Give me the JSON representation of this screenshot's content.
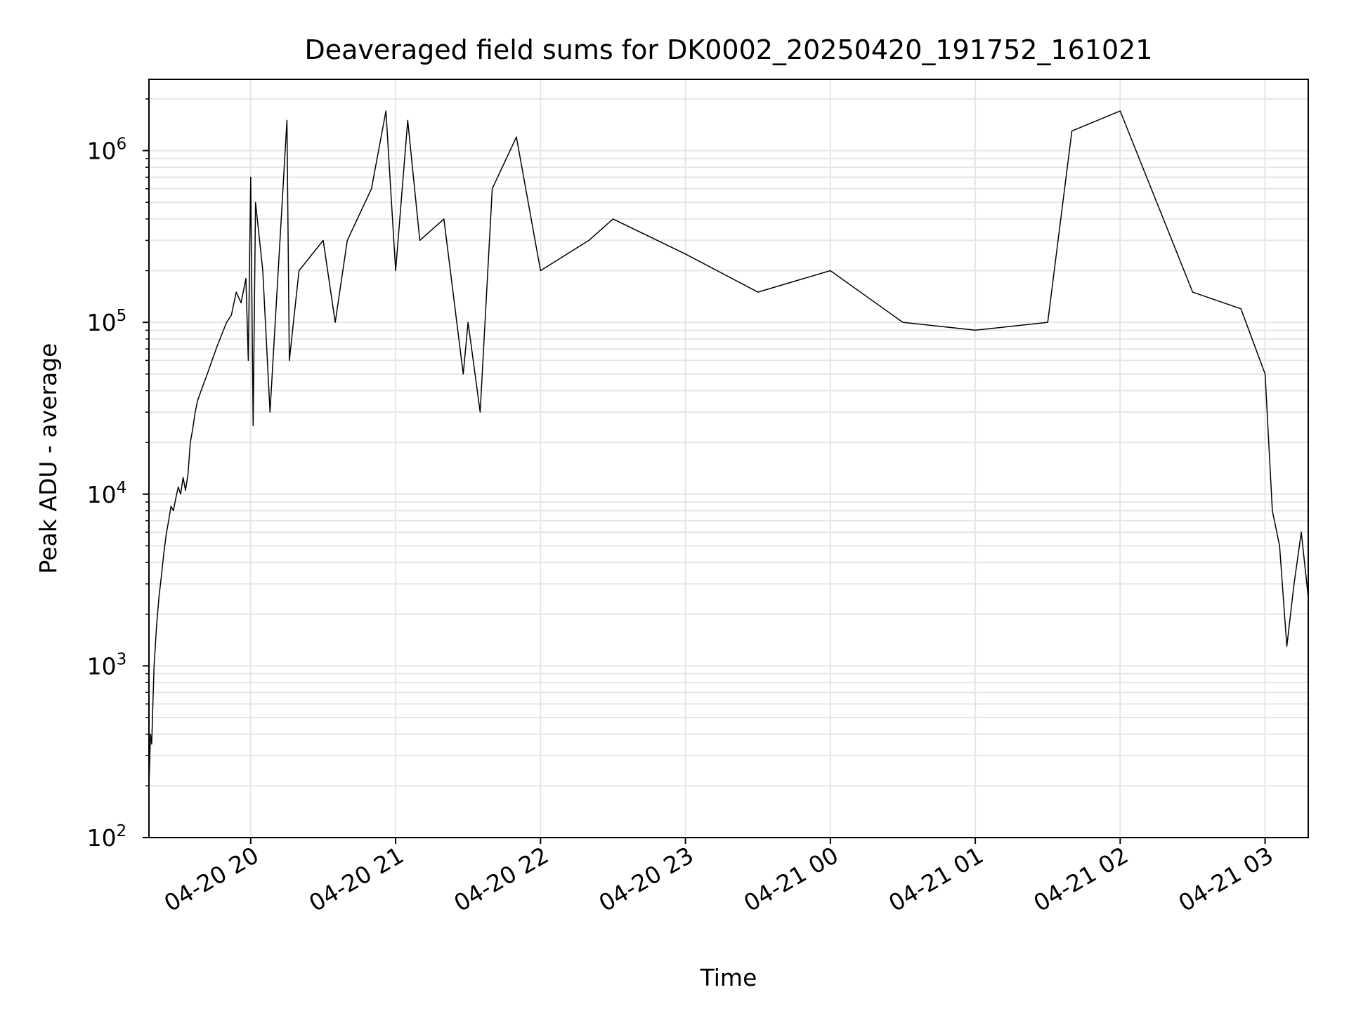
{
  "chart_data": {
    "type": "line",
    "title": "Deaveraged field sums for DK0002_20250420_191752_161021",
    "xlabel": "Time",
    "ylabel": "Peak ADU - average",
    "x_range": [
      "2025-04-20T19:17:52",
      "2025-04-21T03:17:52"
    ],
    "yscale": "log",
    "ylim": [
      100,
      2600000
    ],
    "grid": true,
    "x_ticks": [
      {
        "time": "2025-04-20T20:00",
        "label": "04-20 20"
      },
      {
        "time": "2025-04-20T21:00",
        "label": "04-20 21"
      },
      {
        "time": "2025-04-20T22:00",
        "label": "04-20 22"
      },
      {
        "time": "2025-04-20T23:00",
        "label": "04-20 23"
      },
      {
        "time": "2025-04-21T00:00",
        "label": "04-21 00"
      },
      {
        "time": "2025-04-21T01:00",
        "label": "04-21 01"
      },
      {
        "time": "2025-04-21T02:00",
        "label": "04-21 02"
      },
      {
        "time": "2025-04-21T03:00",
        "label": "04-21 03"
      }
    ],
    "y_ticks": [
      {
        "value": 100,
        "base": "10",
        "exp": "2"
      },
      {
        "value": 1000,
        "base": "10",
        "exp": "3"
      },
      {
        "value": 10000,
        "base": "10",
        "exp": "4"
      },
      {
        "value": 100000,
        "base": "10",
        "exp": "5"
      },
      {
        "value": 1000000,
        "base": "10",
        "exp": "6"
      }
    ],
    "series": [
      {
        "color": "#000000",
        "points": [
          [
            "2025-04-20T19:17:52",
            200
          ],
          [
            "2025-04-20T19:18:30",
            400
          ],
          [
            "2025-04-20T19:19:00",
            350
          ],
          [
            "2025-04-20T19:19:30",
            600
          ],
          [
            "2025-04-20T19:20:00",
            1000
          ],
          [
            "2025-04-20T19:21:00",
            1700
          ],
          [
            "2025-04-20T19:22:00",
            2500
          ],
          [
            "2025-04-20T19:23:00",
            3300
          ],
          [
            "2025-04-20T19:24:00",
            4500
          ],
          [
            "2025-04-20T19:25:00",
            5800
          ],
          [
            "2025-04-20T19:26:00",
            7000
          ],
          [
            "2025-04-20T19:27:00",
            8500
          ],
          [
            "2025-04-20T19:28:00",
            8000
          ],
          [
            "2025-04-20T19:29:00",
            9500
          ],
          [
            "2025-04-20T19:30:00",
            11000
          ],
          [
            "2025-04-20T19:31:00",
            10000
          ],
          [
            "2025-04-20T19:32:00",
            12500
          ],
          [
            "2025-04-20T19:33:00",
            10500
          ],
          [
            "2025-04-20T19:34:00",
            13000
          ],
          [
            "2025-04-20T19:35:00",
            20000
          ],
          [
            "2025-04-20T19:36:00",
            24000
          ],
          [
            "2025-04-20T19:37:00",
            30000
          ],
          [
            "2025-04-20T19:38:00",
            35000
          ],
          [
            "2025-04-20T19:40:00",
            42000
          ],
          [
            "2025-04-20T19:42:00",
            50000
          ],
          [
            "2025-04-20T19:44:00",
            60000
          ],
          [
            "2025-04-20T19:46:00",
            72000
          ],
          [
            "2025-04-20T19:48:00",
            85000
          ],
          [
            "2025-04-20T19:50:00",
            100000
          ],
          [
            "2025-04-20T19:52:00",
            110000
          ],
          [
            "2025-04-20T19:54:00",
            150000
          ],
          [
            "2025-04-20T19:56:00",
            130000
          ],
          [
            "2025-04-20T19:58:00",
            180000
          ],
          [
            "2025-04-20T19:59:00",
            60000
          ],
          [
            "2025-04-20T20:00:00",
            700000
          ],
          [
            "2025-04-20T20:01:00",
            25000
          ],
          [
            "2025-04-20T20:02:00",
            500000
          ],
          [
            "2025-04-20T20:05:00",
            200000
          ],
          [
            "2025-04-20T20:08:00",
            30000
          ],
          [
            "2025-04-20T20:15:00",
            1500000
          ],
          [
            "2025-04-20T20:16:00",
            60000
          ],
          [
            "2025-04-20T20:20:00",
            200000
          ],
          [
            "2025-04-20T20:30:00",
            300000
          ],
          [
            "2025-04-20T20:35:00",
            100000
          ],
          [
            "2025-04-20T20:40:00",
            300000
          ],
          [
            "2025-04-20T20:50:00",
            600000
          ],
          [
            "2025-04-20T20:56:00",
            1700000
          ],
          [
            "2025-04-20T21:00:00",
            200000
          ],
          [
            "2025-04-20T21:05:00",
            1500000
          ],
          [
            "2025-04-20T21:10:00",
            300000
          ],
          [
            "2025-04-20T21:20:00",
            400000
          ],
          [
            "2025-04-20T21:28:00",
            50000
          ],
          [
            "2025-04-20T21:30:00",
            100000
          ],
          [
            "2025-04-20T21:35:00",
            30000
          ],
          [
            "2025-04-20T21:40:00",
            600000
          ],
          [
            "2025-04-20T21:50:00",
            1200000
          ],
          [
            "2025-04-20T22:00:00",
            200000
          ],
          [
            "2025-04-20T22:20:00",
            300000
          ],
          [
            "2025-04-20T22:30:00",
            400000
          ],
          [
            "2025-04-20T23:00:00",
            250000
          ],
          [
            "2025-04-20T23:30:00",
            150000
          ],
          [
            "2025-04-21T00:00:00",
            200000
          ],
          [
            "2025-04-21T00:30:00",
            100000
          ],
          [
            "2025-04-21T01:00:00",
            90000
          ],
          [
            "2025-04-21T01:30:00",
            100000
          ],
          [
            "2025-04-21T01:40:00",
            1300000
          ],
          [
            "2025-04-21T02:00:00",
            1700000
          ],
          [
            "2025-04-21T02:30:00",
            150000
          ],
          [
            "2025-04-21T02:50:00",
            120000
          ],
          [
            "2025-04-21T03:00:00",
            50000
          ],
          [
            "2025-04-21T03:03:00",
            8000
          ],
          [
            "2025-04-21T03:06:00",
            5000
          ],
          [
            "2025-04-21T03:09:00",
            1300
          ],
          [
            "2025-04-21T03:12:00",
            3000
          ],
          [
            "2025-04-21T03:15:00",
            6000
          ],
          [
            "2025-04-21T03:17:52",
            2500
          ]
        ]
      }
    ]
  }
}
